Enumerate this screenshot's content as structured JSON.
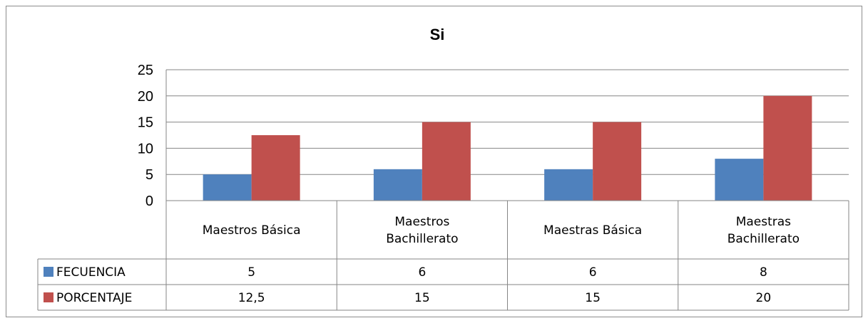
{
  "chart_data": {
    "type": "bar",
    "title": "Si",
    "categories": [
      [
        "Maestros Básica"
      ],
      [
        "Maestros",
        "Bachillerato"
      ],
      [
        "Maestras Básica"
      ],
      [
        "Maestras",
        "Bachillerato"
      ]
    ],
    "series": [
      {
        "name": "FECUENCIA",
        "values": [
          5,
          6,
          6,
          8
        ],
        "labels": [
          "5",
          "6",
          "6",
          "8"
        ],
        "color": "#4f81bd"
      },
      {
        "name": "PORCENTAJE",
        "values": [
          12.5,
          15,
          15,
          20
        ],
        "labels": [
          "12,5",
          "15",
          "15",
          "20"
        ],
        "color": "#c0504d"
      }
    ],
    "ylim": [
      0,
      25
    ],
    "yticks": [
      0,
      5,
      10,
      15,
      20,
      25
    ],
    "grid": true,
    "data_table": true,
    "gridline_color": "#868686"
  }
}
